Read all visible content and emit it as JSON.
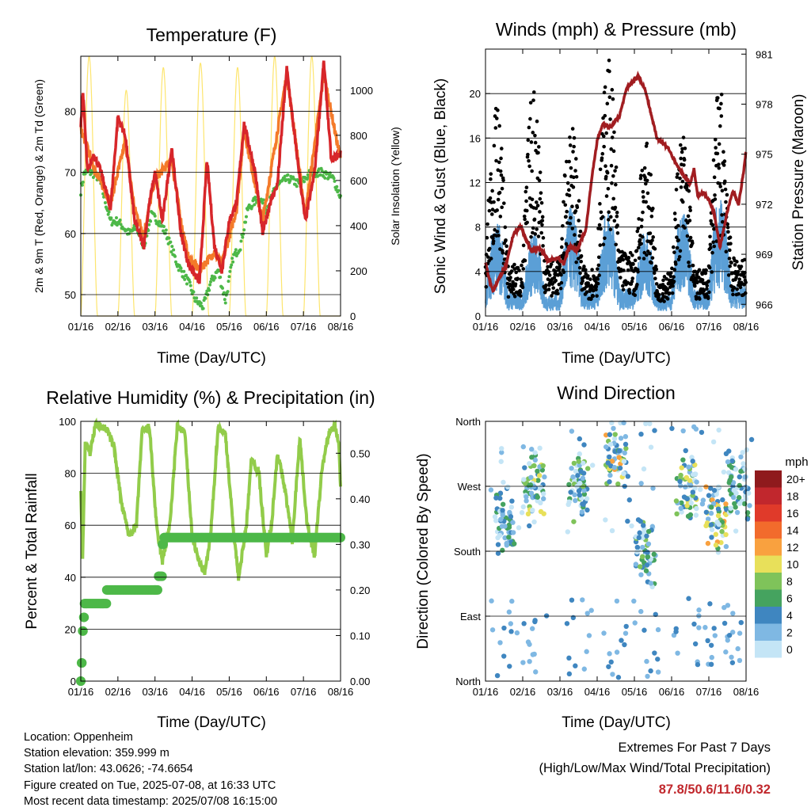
{
  "charts": {
    "temperature": {
      "title": "Temperature (F)",
      "ylabel_left": "2m & 9m T (Red, Orange) & 2m Td (Green)",
      "ylabel_right": "Solar Insolation (Yellow)",
      "xlabel": "Time (Day/UTC)",
      "left_ticks": [
        "50",
        "60",
        "70",
        "80"
      ],
      "right_ticks": [
        "0",
        "200",
        "400",
        "600",
        "800",
        "1000"
      ],
      "x_ticks": [
        "01/16",
        "02/16",
        "03/16",
        "04/16",
        "05/16",
        "06/16",
        "07/16",
        "08/16"
      ]
    },
    "winds": {
      "title": "Winds (mph) & Pressure (mb)",
      "ylabel_left": "Sonic Wind & Gust (Blue, Black)",
      "ylabel_right": "Station Pressure (Maroon)",
      "xlabel": "Time (Day/UTC)",
      "left_ticks": [
        "0",
        "4",
        "8",
        "12",
        "16",
        "20"
      ],
      "right_ticks": [
        "966",
        "969",
        "972",
        "975",
        "978",
        "981"
      ],
      "x_ticks": [
        "01/16",
        "02/16",
        "03/16",
        "04/16",
        "05/16",
        "06/16",
        "07/16",
        "08/16"
      ]
    },
    "humidity": {
      "title": "Relative Humidity (%) & Precipitation (in)",
      "ylabel_left": "Percent & Total Rainfall",
      "xlabel": "Time (Day/UTC)",
      "left_ticks": [
        "0",
        "20",
        "40",
        "60",
        "80",
        "100"
      ],
      "right_ticks": [
        "0.00",
        "0.10",
        "0.20",
        "0.30",
        "0.40",
        "0.50"
      ],
      "x_ticks": [
        "01/16",
        "02/16",
        "03/16",
        "04/16",
        "05/16",
        "06/16",
        "07/16",
        "08/16"
      ]
    },
    "direction": {
      "title": "Wind Direction",
      "ylabel_left": "Direction (Colored By Speed)",
      "xlabel": "Time (Day/UTC)",
      "left_ticks": [
        "North",
        "East",
        "South",
        "West",
        "North"
      ],
      "x_ticks": [
        "01/16",
        "02/16",
        "03/16",
        "04/16",
        "05/16",
        "06/16",
        "07/16",
        "08/16"
      ],
      "legend_title": "mph",
      "legend_labels": [
        "20+",
        "18",
        "16",
        "14",
        "12",
        "10",
        "8",
        "6",
        "4",
        "2",
        "0"
      ],
      "legend_colors": [
        "#8f1a1d",
        "#c1272d",
        "#e03a2a",
        "#f26b2c",
        "#f9a13f",
        "#e8e05a",
        "#7fc35a",
        "#45a35f",
        "#3f86c0",
        "#7fb8e3",
        "#c4e5f6"
      ]
    }
  },
  "info": {
    "location": "Location: Oppenheim",
    "elevation": "Station elevation: 359.999 m",
    "latlon": "Station lat/lon: 43.0626; -74.6654",
    "created": "Figure created on Tue, 2025-07-08, at 16:33 UTC",
    "timestamp": "Most recent data timestamp: 2025/07/08 16:15:00"
  },
  "extremes": {
    "line1": "Extremes For Past 7 Days",
    "line2": "(High/Low/Max Wind/Total Precipitation)",
    "values": "87.8/50.6/11.6/0.32"
  },
  "colors": {
    "temp_2m": "#d7262a",
    "temp_9m": "#f47a2a",
    "dewpoint": "#4db848",
    "solar": "#fde56e",
    "wind": "#5b9fd6",
    "gust": "#000000",
    "pressure": "#a11d21",
    "rh": "#92cc4a",
    "rain": "#4db848"
  },
  "chart_data": [
    {
      "type": "line",
      "title": "Temperature (F)",
      "xlabel": "Time (Day/UTC)",
      "ylabel": "2m & 9m T (Red, Orange) & 2m Td (Green)",
      "ylabel_right": "Solar Insolation (Yellow)",
      "x": [
        "01/16",
        "02/16",
        "03/16",
        "04/16",
        "05/16",
        "06/16",
        "07/16",
        "08/16"
      ],
      "ylim": [
        46.5,
        89
      ],
      "ylim_right": [
        0,
        1150
      ],
      "series": [
        {
          "name": "2m T",
          "axis": "left",
          "x": [
            0,
            0.06,
            0.18,
            0.35,
            0.55,
            0.8,
            1.0,
            1.2,
            1.45,
            1.7,
            1.85,
            2.0,
            2.2,
            2.45,
            2.7,
            2.9,
            3.2,
            3.4,
            3.6,
            3.8,
            4.0,
            4.2,
            4.4,
            4.7,
            4.9,
            5.1,
            5.3,
            5.55,
            5.8,
            6.05,
            6.3,
            6.55,
            6.75,
            7.0
          ],
          "values": [
            78,
            83,
            70,
            73,
            70,
            64,
            79,
            76,
            62,
            58,
            65,
            70,
            62,
            74,
            60,
            55,
            52,
            72,
            58,
            54,
            62,
            65,
            78,
            70,
            60,
            65,
            68,
            87,
            74,
            62,
            70,
            88,
            72,
            73
          ]
        },
        {
          "name": "9m T",
          "axis": "left",
          "x": [
            0,
            0.35,
            0.8,
            1.2,
            1.45,
            1.7,
            2.0,
            2.45,
            2.7,
            2.9,
            3.2,
            3.6,
            3.8,
            4.2,
            4.4,
            4.9,
            5.55,
            6.05,
            6.55,
            7.0
          ],
          "values": [
            77,
            71,
            65,
            75,
            64,
            60,
            69,
            72,
            62,
            56,
            54,
            57,
            55,
            64,
            77,
            62,
            86,
            63,
            86,
            72
          ]
        },
        {
          "name": "2m Td",
          "axis": "left",
          "x": [
            0,
            0.1,
            0.3,
            0.5,
            0.8,
            1.0,
            1.3,
            1.5,
            1.7,
            1.9,
            2.1,
            2.3,
            2.6,
            2.9,
            3.1,
            3.3,
            3.5,
            3.7,
            3.9,
            4.1,
            4.3,
            4.5,
            4.8,
            5.0,
            5.3,
            5.6,
            5.9,
            6.2,
            6.5,
            6.8,
            7.0
          ],
          "values": [
            67,
            70,
            70,
            69,
            62,
            62,
            60,
            61,
            58,
            63,
            62,
            60,
            55,
            52,
            49,
            48,
            52,
            54,
            49,
            56,
            58,
            64,
            66,
            64,
            68,
            69,
            68,
            70,
            70,
            69,
            66
          ]
        },
        {
          "name": "Solar",
          "axis": "right",
          "peaks": [
            1150,
            1000,
            1100,
            1120,
            1100,
            1150,
            1150,
            1130
          ]
        }
      ]
    },
    {
      "type": "line",
      "title": "Winds (mph) & Pressure (mb)",
      "xlabel": "Time (Day/UTC)",
      "ylabel": "Sonic Wind & Gust (Blue, Black)",
      "ylabel_right": "Station Pressure (Maroon)",
      "x": [
        "01/16",
        "02/16",
        "03/16",
        "04/16",
        "05/16",
        "06/16",
        "07/16",
        "08/16"
      ],
      "ylim": [
        0,
        24
      ],
      "ylim_right": [
        965.3,
        981.3
      ],
      "series": [
        {
          "name": "Sonic Wind",
          "axis": "left",
          "daily_peak": [
            8,
            7,
            9,
            9,
            7,
            9,
            10,
            8
          ]
        },
        {
          "name": "Gust",
          "axis": "left",
          "daily_peak": [
            18,
            20,
            17,
            22,
            15,
            16,
            20,
            14
          ]
        },
        {
          "name": "Station Pressure",
          "axis": "right",
          "x": [
            0,
            0.1,
            0.2,
            0.35,
            0.55,
            0.75,
            0.95,
            1.1,
            1.25,
            1.45,
            1.7,
            1.95,
            2.1,
            2.25,
            2.45,
            2.7,
            2.85,
            3.0,
            3.15,
            3.35,
            3.6,
            3.8,
            3.95,
            4.1,
            4.3,
            4.6,
            4.9,
            5.1,
            5.3,
            5.5,
            5.6,
            5.7,
            5.85,
            6.0,
            6.15,
            6.3,
            6.5,
            6.65,
            6.8,
            6.95,
            7.0
          ],
          "values": [
            968.5,
            967.5,
            966.8,
            967.5,
            968.3,
            970.2,
            970.7,
            969.8,
            969.2,
            969.4,
            968.6,
            968.8,
            968.4,
            969.5,
            969.2,
            970.5,
            973.5,
            975.8,
            976.8,
            976.6,
            977.3,
            979.0,
            979.3,
            979.7,
            978.8,
            976.0,
            975.4,
            974.5,
            973.8,
            973.2,
            974.1,
            972.5,
            972.7,
            972.3,
            971.4,
            969.4,
            971.6,
            972.8,
            972.0,
            974.2,
            975.2
          ]
        }
      ]
    },
    {
      "type": "line",
      "title": "Relative Humidity (%) & Precipitation (in)",
      "xlabel": "Time (Day/UTC)",
      "ylabel": "Percent & Total Rainfall",
      "x": [
        "01/16",
        "02/16",
        "03/16",
        "04/16",
        "05/16",
        "06/16",
        "07/16",
        "08/16"
      ],
      "ylim": [
        0,
        100
      ],
      "ylim_right": [
        0,
        0.57
      ],
      "series": [
        {
          "name": "RH",
          "axis": "left",
          "x": [
            0,
            0.05,
            0.12,
            0.25,
            0.4,
            0.55,
            0.7,
            0.9,
            1.1,
            1.3,
            1.5,
            1.65,
            1.85,
            2.05,
            2.2,
            2.4,
            2.6,
            2.8,
            3.0,
            3.2,
            3.35,
            3.5,
            3.7,
            3.9,
            4.1,
            4.25,
            4.45,
            4.6,
            4.8,
            5.0,
            5.15,
            5.3,
            5.5,
            5.7,
            5.9,
            6.1,
            6.3,
            6.5,
            6.7,
            6.85,
            6.95,
            7.0
          ],
          "values": [
            72,
            48,
            92,
            88,
            99,
            98,
            97,
            90,
            68,
            56,
            60,
            96,
            98,
            58,
            46,
            60,
            98,
            96,
            56,
            45,
            42,
            56,
            98,
            95,
            60,
            40,
            58,
            86,
            80,
            48,
            62,
            88,
            74,
            54,
            94,
            60,
            48,
            82,
            96,
            98,
            92,
            74
          ]
        },
        {
          "name": "Total Rainfall",
          "axis": "right",
          "type": "step",
          "x": [
            0,
            0.02,
            0.05,
            0.08,
            0.1,
            0.15,
            0.6,
            0.7,
            2.0,
            2.1,
            2.2,
            2.25,
            7.0
          ],
          "values": [
            0,
            0.04,
            0.11,
            0.14,
            0.17,
            0.17,
            0.17,
            0.2,
            0.2,
            0.23,
            0.3,
            0.315,
            0.315
          ]
        }
      ]
    },
    {
      "type": "scatter",
      "title": "Wind Direction",
      "xlabel": "Time (Day/UTC)",
      "ylabel": "Direction (Colored By Speed)",
      "x": [
        "01/16",
        "02/16",
        "03/16",
        "04/16",
        "05/16",
        "06/16",
        "07/16",
        "08/16"
      ],
      "y_categories": [
        "North",
        "East",
        "South",
        "West",
        "North"
      ],
      "legend": {
        "title": "mph",
        "labels": [
          "20+",
          "18",
          "16",
          "14",
          "12",
          "10",
          "8",
          "6",
          "4",
          "2",
          "0"
        ]
      },
      "clusters": [
        {
          "day": 0.5,
          "direction": "West/South",
          "max_speed": 6
        },
        {
          "day": 1.3,
          "direction": "West",
          "max_speed": 10
        },
        {
          "day": 2.5,
          "direction": "West",
          "max_speed": 8
        },
        {
          "day": 3.5,
          "direction": "West/North",
          "max_speed": 12
        },
        {
          "day": 4.3,
          "direction": "South",
          "max_speed": 8
        },
        {
          "day": 5.4,
          "direction": "West",
          "max_speed": 10
        },
        {
          "day": 6.2,
          "direction": "South/West",
          "max_speed": 12
        },
        {
          "day": 6.8,
          "direction": "West",
          "max_speed": 6
        }
      ]
    }
  ]
}
